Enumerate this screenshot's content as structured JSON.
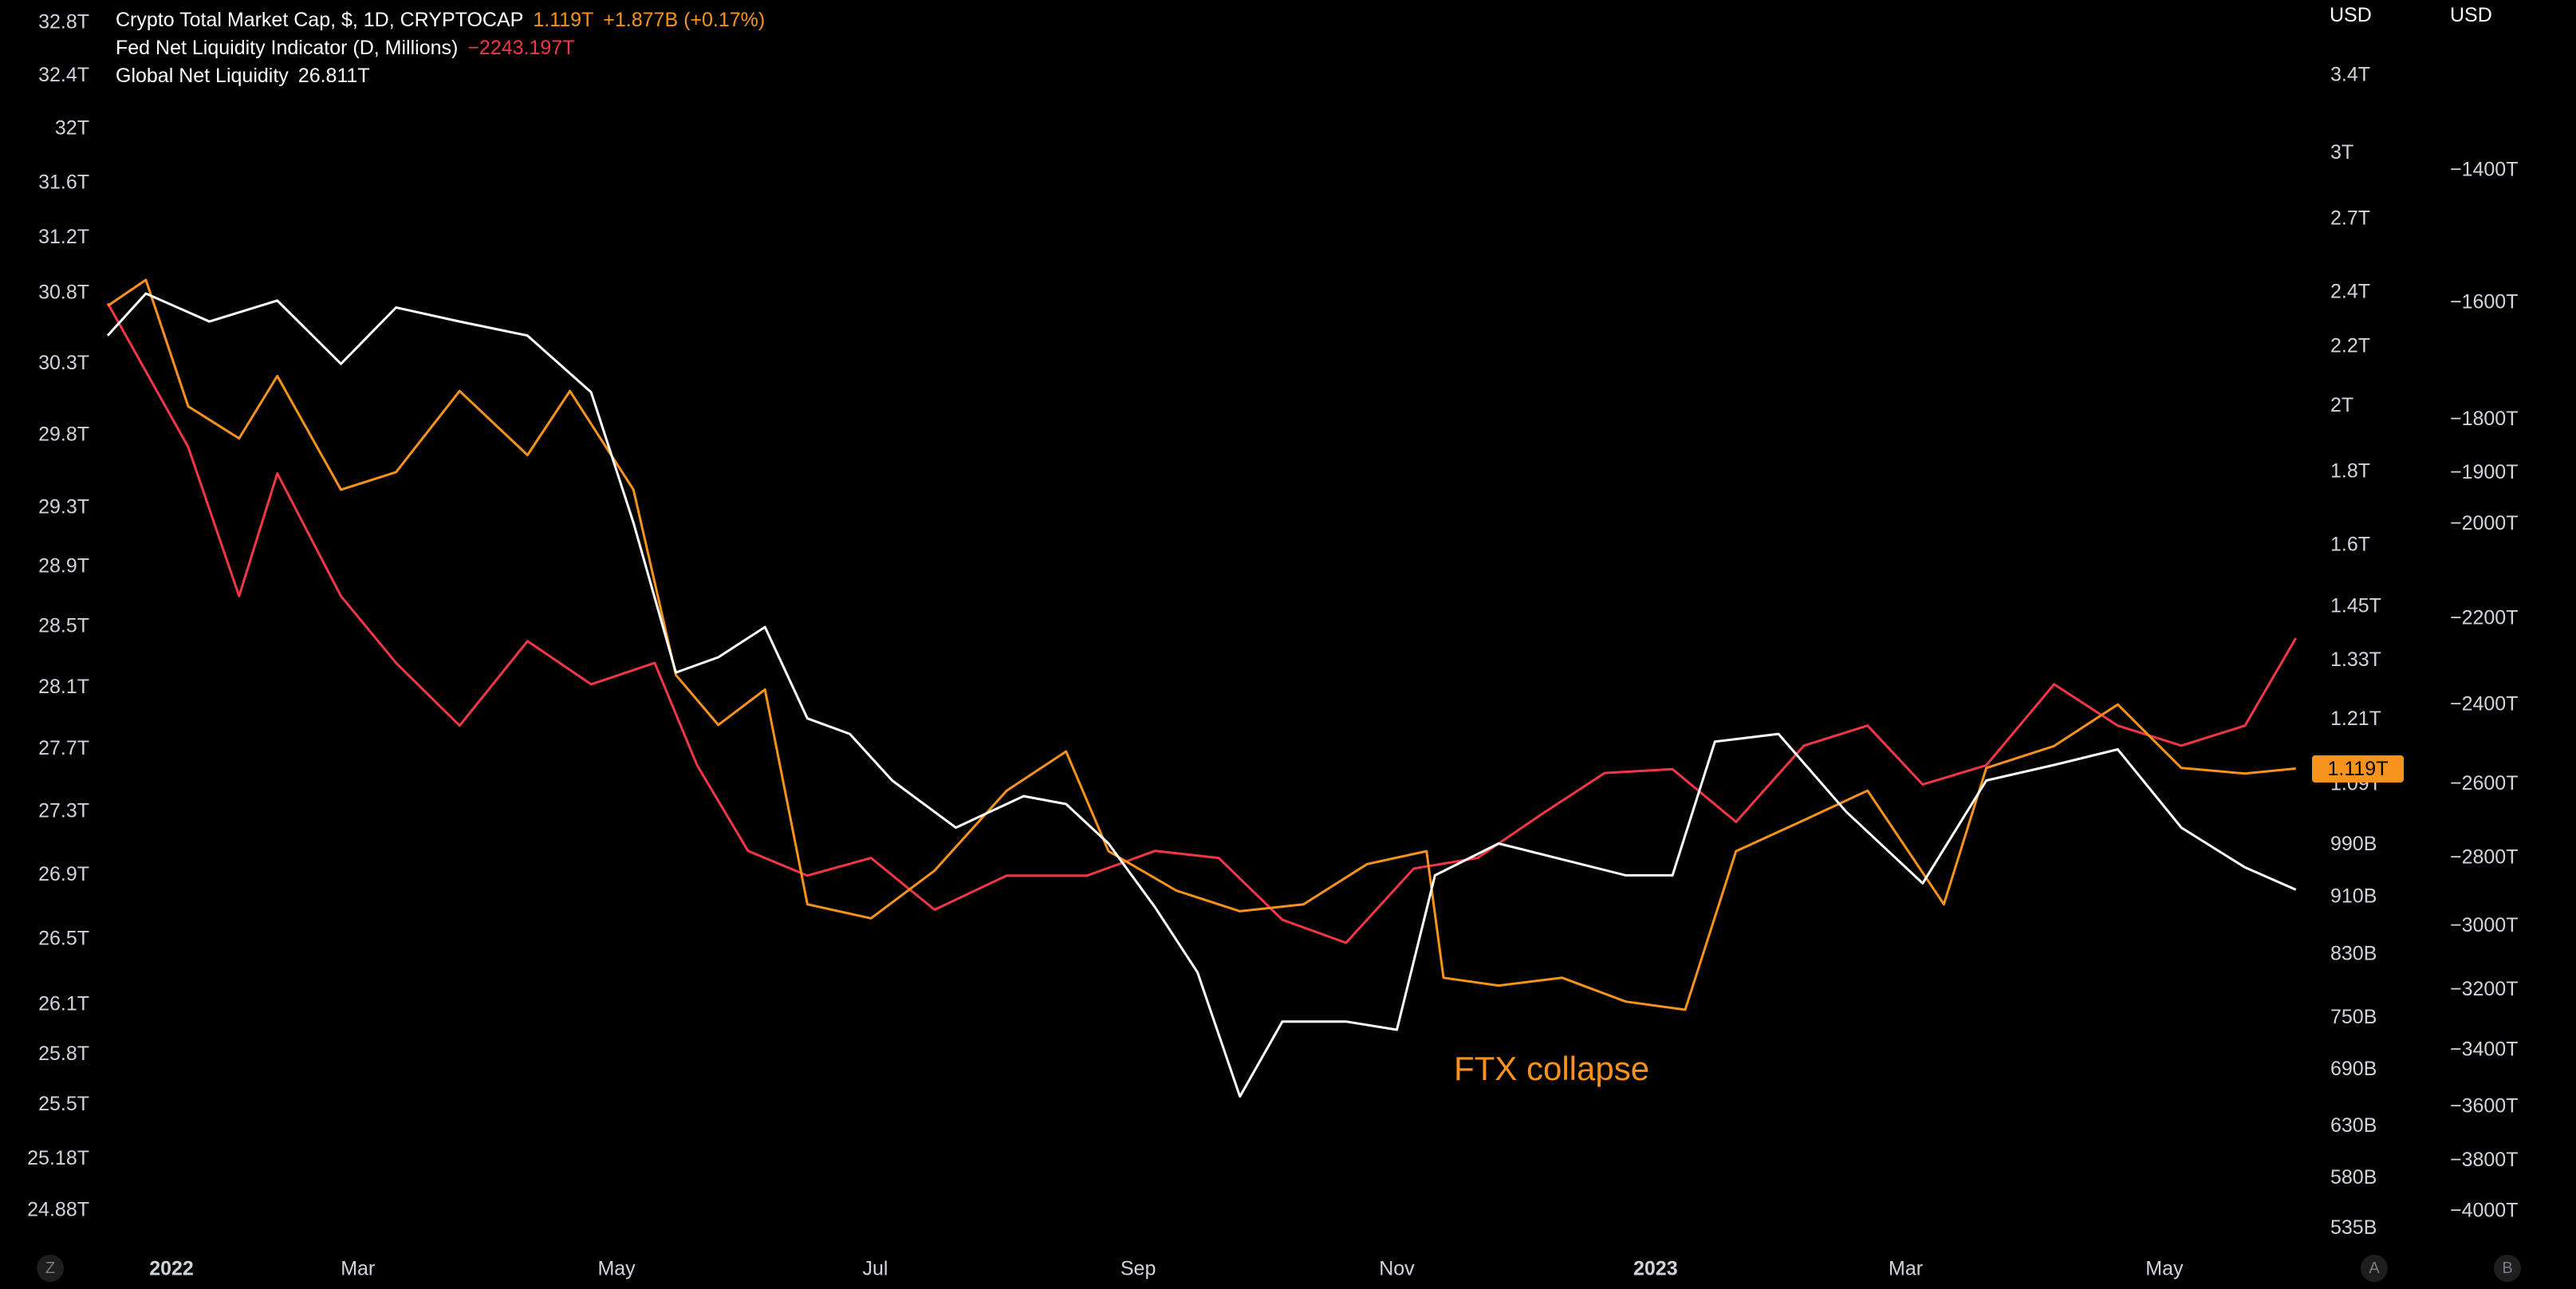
{
  "legend": {
    "crypto": {
      "label": "Crypto Total Market Cap, $, 1D, CRYPTOCAP",
      "value": "1.119T",
      "change": "+1.877B (+0.17%)"
    },
    "fed": {
      "label": "Fed Net Liquidity Indicator (D, Millions)",
      "value": "−2243.197T"
    },
    "global": {
      "label": "Global Net Liquidity",
      "value": "26.811T"
    }
  },
  "corner_buttons": {
    "left": "Z",
    "mid": "A",
    "right": "B"
  },
  "price_tag": "1.119T",
  "annotation": "FTX collapse",
  "colors": {
    "crypto": "#f7931a",
    "fed": "#f23645",
    "global": "#ffffff",
    "background": "#000000",
    "axis_text": "#d1d4dc"
  },
  "chart_data": {
    "type": "line",
    "x_tick_labels": [
      "2022",
      "Mar",
      "May",
      "Jul",
      "Sep",
      "Nov",
      "2023",
      "Mar",
      "May"
    ],
    "x_range": [
      "2022-01-01",
      "2023-06-05"
    ],
    "left_axis": {
      "tick_labels": [
        "32.8T",
        "32.4T",
        "32T",
        "31.6T",
        "31.2T",
        "30.8T",
        "30.3T",
        "29.8T",
        "29.3T",
        "28.9T",
        "28.5T",
        "28.1T",
        "27.7T",
        "27.3T",
        "26.9T",
        "26.5T",
        "26.1T",
        "25.8T",
        "25.5T",
        "25.18T",
        "24.88T"
      ],
      "scale": "log"
    },
    "right_axis_1": {
      "unit": "USD",
      "tick_labels": [
        "3.4T",
        "3T",
        "2.7T",
        "2.4T",
        "2.2T",
        "2T",
        "1.8T",
        "1.6T",
        "1.45T",
        "1.33T",
        "1.21T",
        "1.09T",
        "990B",
        "910B",
        "830B",
        "750B",
        "690B",
        "630B",
        "580B",
        "535B"
      ],
      "scale": "log"
    },
    "right_axis_2": {
      "unit": "USD",
      "tick_labels": [
        "−1400T",
        "−1600T",
        "−1800T",
        "−1900T",
        "−2000T",
        "−2200T",
        "−2400T",
        "−2600T",
        "−2800T",
        "−3000T",
        "−3200T",
        "−3400T",
        "−3600T",
        "−3800T",
        "−4000T"
      ],
      "scale": "log"
    },
    "series": [
      {
        "name": "Global Net Liquidity",
        "axis": "left",
        "points": [
          [
            "2022-01-01",
            30.5
          ],
          [
            "2022-01-10",
            30.8
          ],
          [
            "2022-01-25",
            30.6
          ],
          [
            "2022-02-10",
            30.75
          ],
          [
            "2022-02-25",
            30.3
          ],
          [
            "2022-03-10",
            30.7
          ],
          [
            "2022-03-25",
            30.6
          ],
          [
            "2022-04-10",
            30.5
          ],
          [
            "2022-04-25",
            30.1
          ],
          [
            "2022-05-05",
            29.2
          ],
          [
            "2022-05-15",
            28.2
          ],
          [
            "2022-05-25",
            28.3
          ],
          [
            "2022-06-05",
            28.5
          ],
          [
            "2022-06-15",
            27.9
          ],
          [
            "2022-06-25",
            27.8
          ],
          [
            "2022-07-05",
            27.5
          ],
          [
            "2022-07-20",
            27.2
          ],
          [
            "2022-08-05",
            27.4
          ],
          [
            "2022-08-15",
            27.35
          ],
          [
            "2022-08-25",
            27.1
          ],
          [
            "2022-09-05",
            26.7
          ],
          [
            "2022-09-15",
            26.3
          ],
          [
            "2022-09-25",
            25.55
          ],
          [
            "2022-10-05",
            26.0
          ],
          [
            "2022-10-20",
            26.0
          ],
          [
            "2022-11-01",
            25.95
          ],
          [
            "2022-11-10",
            26.9
          ],
          [
            "2022-11-25",
            27.1
          ],
          [
            "2022-12-10",
            27.0
          ],
          [
            "2022-12-25",
            26.9
          ],
          [
            "2023-01-05",
            26.9
          ],
          [
            "2023-01-15",
            27.75
          ],
          [
            "2023-01-30",
            27.8
          ],
          [
            "2023-02-15",
            27.3
          ],
          [
            "2023-03-05",
            26.85
          ],
          [
            "2023-03-20",
            27.5
          ],
          [
            "2023-04-05",
            27.6
          ],
          [
            "2023-04-20",
            27.7
          ],
          [
            "2023-05-05",
            27.2
          ],
          [
            "2023-05-20",
            26.95
          ],
          [
            "2023-06-01",
            26.81
          ]
        ]
      },
      {
        "name": "Crypto Total Market Cap",
        "axis": "right_1",
        "points": [
          [
            "2022-01-01",
            2.35
          ],
          [
            "2022-01-10",
            2.45
          ],
          [
            "2022-01-20",
            2.0
          ],
          [
            "2022-02-01",
            1.9
          ],
          [
            "2022-02-10",
            2.1
          ],
          [
            "2022-02-25",
            1.75
          ],
          [
            "2022-03-10",
            1.8
          ],
          [
            "2022-03-25",
            2.05
          ],
          [
            "2022-04-10",
            1.85
          ],
          [
            "2022-04-20",
            2.05
          ],
          [
            "2022-05-05",
            1.75
          ],
          [
            "2022-05-15",
            1.3
          ],
          [
            "2022-05-25",
            1.2
          ],
          [
            "2022-06-05",
            1.27
          ],
          [
            "2022-06-15",
            0.9
          ],
          [
            "2022-06-30",
            0.88
          ],
          [
            "2022-07-15",
            0.95
          ],
          [
            "2022-08-01",
            1.08
          ],
          [
            "2022-08-15",
            1.15
          ],
          [
            "2022-08-25",
            0.98
          ],
          [
            "2022-09-10",
            0.92
          ],
          [
            "2022-09-25",
            0.89
          ],
          [
            "2022-10-10",
            0.9
          ],
          [
            "2022-10-25",
            0.96
          ],
          [
            "2022-11-08",
            0.98
          ],
          [
            "2022-11-12",
            0.8
          ],
          [
            "2022-11-25",
            0.79
          ],
          [
            "2022-12-10",
            0.8
          ],
          [
            "2022-12-25",
            0.77
          ],
          [
            "2023-01-08",
            0.76
          ],
          [
            "2023-01-20",
            0.98
          ],
          [
            "2023-02-05",
            1.03
          ],
          [
            "2023-02-20",
            1.08
          ],
          [
            "2023-03-10",
            0.9
          ],
          [
            "2023-03-20",
            1.12
          ],
          [
            "2023-04-05",
            1.16
          ],
          [
            "2023-04-20",
            1.24
          ],
          [
            "2023-05-05",
            1.12
          ],
          [
            "2023-05-20",
            1.11
          ],
          [
            "2023-06-01",
            1.119
          ]
        ]
      },
      {
        "name": "Fed Net Liquidity Indicator",
        "axis": "right_2",
        "points": [
          [
            "2022-01-01",
            -1600
          ],
          [
            "2022-01-20",
            -1850
          ],
          [
            "2022-02-01",
            -2150
          ],
          [
            "2022-02-10",
            -1900
          ],
          [
            "2022-02-25",
            -2150
          ],
          [
            "2022-03-10",
            -2300
          ],
          [
            "2022-03-25",
            -2450
          ],
          [
            "2022-04-10",
            -2250
          ],
          [
            "2022-04-25",
            -2350
          ],
          [
            "2022-05-10",
            -2300
          ],
          [
            "2022-05-20",
            -2550
          ],
          [
            "2022-06-01",
            -2780
          ],
          [
            "2022-06-15",
            -2850
          ],
          [
            "2022-06-30",
            -2800
          ],
          [
            "2022-07-15",
            -2950
          ],
          [
            "2022-08-01",
            -2850
          ],
          [
            "2022-08-20",
            -2850
          ],
          [
            "2022-09-05",
            -2780
          ],
          [
            "2022-09-20",
            -2800
          ],
          [
            "2022-10-05",
            -2980
          ],
          [
            "2022-10-20",
            -3050
          ],
          [
            "2022-11-05",
            -2830
          ],
          [
            "2022-11-20",
            -2800
          ],
          [
            "2022-12-05",
            -2680
          ],
          [
            "2022-12-20",
            -2570
          ],
          [
            "2023-01-05",
            -2560
          ],
          [
            "2023-01-20",
            -2700
          ],
          [
            "2023-02-05",
            -2500
          ],
          [
            "2023-02-20",
            -2450
          ],
          [
            "2023-03-05",
            -2600
          ],
          [
            "2023-03-20",
            -2550
          ],
          [
            "2023-04-05",
            -2350
          ],
          [
            "2023-04-20",
            -2450
          ],
          [
            "2023-05-05",
            -2500
          ],
          [
            "2023-05-20",
            -2450
          ],
          [
            "2023-06-01",
            -2243.197
          ]
        ]
      }
    ]
  }
}
